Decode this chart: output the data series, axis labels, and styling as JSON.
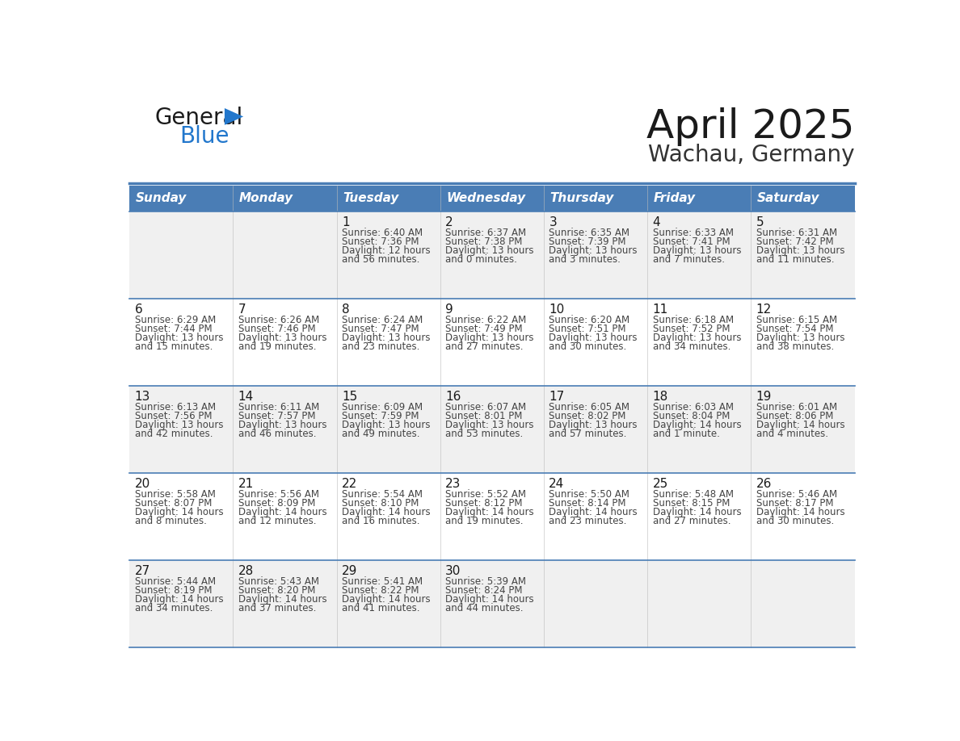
{
  "title": "April 2025",
  "subtitle": "Wachau, Germany",
  "header_bg_color": "#4a7db5",
  "header_text_color": "#ffffff",
  "cell_bg_odd": "#f0f0f0",
  "cell_bg_even": "#ffffff",
  "border_color": "#4a7db5",
  "day_number_color": "#1a1a1a",
  "cell_text_color": "#444444",
  "days_of_week": [
    "Sunday",
    "Monday",
    "Tuesday",
    "Wednesday",
    "Thursday",
    "Friday",
    "Saturday"
  ],
  "weeks": [
    [
      {
        "day": "",
        "sunrise": "",
        "sunset": "",
        "daylight": ""
      },
      {
        "day": "",
        "sunrise": "",
        "sunset": "",
        "daylight": ""
      },
      {
        "day": "1",
        "sunrise": "6:40 AM",
        "sunset": "7:36 PM",
        "daylight": "12 hours and 56 minutes."
      },
      {
        "day": "2",
        "sunrise": "6:37 AM",
        "sunset": "7:38 PM",
        "daylight": "13 hours and 0 minutes."
      },
      {
        "day": "3",
        "sunrise": "6:35 AM",
        "sunset": "7:39 PM",
        "daylight": "13 hours and 3 minutes."
      },
      {
        "day": "4",
        "sunrise": "6:33 AM",
        "sunset": "7:41 PM",
        "daylight": "13 hours and 7 minutes."
      },
      {
        "day": "5",
        "sunrise": "6:31 AM",
        "sunset": "7:42 PM",
        "daylight": "13 hours and 11 minutes."
      }
    ],
    [
      {
        "day": "6",
        "sunrise": "6:29 AM",
        "sunset": "7:44 PM",
        "daylight": "13 hours and 15 minutes."
      },
      {
        "day": "7",
        "sunrise": "6:26 AM",
        "sunset": "7:46 PM",
        "daylight": "13 hours and 19 minutes."
      },
      {
        "day": "8",
        "sunrise": "6:24 AM",
        "sunset": "7:47 PM",
        "daylight": "13 hours and 23 minutes."
      },
      {
        "day": "9",
        "sunrise": "6:22 AM",
        "sunset": "7:49 PM",
        "daylight": "13 hours and 27 minutes."
      },
      {
        "day": "10",
        "sunrise": "6:20 AM",
        "sunset": "7:51 PM",
        "daylight": "13 hours and 30 minutes."
      },
      {
        "day": "11",
        "sunrise": "6:18 AM",
        "sunset": "7:52 PM",
        "daylight": "13 hours and 34 minutes."
      },
      {
        "day": "12",
        "sunrise": "6:15 AM",
        "sunset": "7:54 PM",
        "daylight": "13 hours and 38 minutes."
      }
    ],
    [
      {
        "day": "13",
        "sunrise": "6:13 AM",
        "sunset": "7:56 PM",
        "daylight": "13 hours and 42 minutes."
      },
      {
        "day": "14",
        "sunrise": "6:11 AM",
        "sunset": "7:57 PM",
        "daylight": "13 hours and 46 minutes."
      },
      {
        "day": "15",
        "sunrise": "6:09 AM",
        "sunset": "7:59 PM",
        "daylight": "13 hours and 49 minutes."
      },
      {
        "day": "16",
        "sunrise": "6:07 AM",
        "sunset": "8:01 PM",
        "daylight": "13 hours and 53 minutes."
      },
      {
        "day": "17",
        "sunrise": "6:05 AM",
        "sunset": "8:02 PM",
        "daylight": "13 hours and 57 minutes."
      },
      {
        "day": "18",
        "sunrise": "6:03 AM",
        "sunset": "8:04 PM",
        "daylight": "14 hours and 1 minute."
      },
      {
        "day": "19",
        "sunrise": "6:01 AM",
        "sunset": "8:06 PM",
        "daylight": "14 hours and 4 minutes."
      }
    ],
    [
      {
        "day": "20",
        "sunrise": "5:58 AM",
        "sunset": "8:07 PM",
        "daylight": "14 hours and 8 minutes."
      },
      {
        "day": "21",
        "sunrise": "5:56 AM",
        "sunset": "8:09 PM",
        "daylight": "14 hours and 12 minutes."
      },
      {
        "day": "22",
        "sunrise": "5:54 AM",
        "sunset": "8:10 PM",
        "daylight": "14 hours and 16 minutes."
      },
      {
        "day": "23",
        "sunrise": "5:52 AM",
        "sunset": "8:12 PM",
        "daylight": "14 hours and 19 minutes."
      },
      {
        "day": "24",
        "sunrise": "5:50 AM",
        "sunset": "8:14 PM",
        "daylight": "14 hours and 23 minutes."
      },
      {
        "day": "25",
        "sunrise": "5:48 AM",
        "sunset": "8:15 PM",
        "daylight": "14 hours and 27 minutes."
      },
      {
        "day": "26",
        "sunrise": "5:46 AM",
        "sunset": "8:17 PM",
        "daylight": "14 hours and 30 minutes."
      }
    ],
    [
      {
        "day": "27",
        "sunrise": "5:44 AM",
        "sunset": "8:19 PM",
        "daylight": "14 hours and 34 minutes."
      },
      {
        "day": "28",
        "sunrise": "5:43 AM",
        "sunset": "8:20 PM",
        "daylight": "14 hours and 37 minutes."
      },
      {
        "day": "29",
        "sunrise": "5:41 AM",
        "sunset": "8:22 PM",
        "daylight": "14 hours and 41 minutes."
      },
      {
        "day": "30",
        "sunrise": "5:39 AM",
        "sunset": "8:24 PM",
        "daylight": "14 hours and 44 minutes."
      },
      {
        "day": "",
        "sunrise": "",
        "sunset": "",
        "daylight": ""
      },
      {
        "day": "",
        "sunrise": "",
        "sunset": "",
        "daylight": ""
      },
      {
        "day": "",
        "sunrise": "",
        "sunset": "",
        "daylight": ""
      }
    ]
  ],
  "title_fontsize": 36,
  "subtitle_fontsize": 20,
  "header_fontsize": 11,
  "day_num_fontsize": 11,
  "cell_fontsize": 8.5,
  "logo_general_fontsize": 20,
  "logo_blue_fontsize": 20,
  "logo_general_color": "#1a1a1a",
  "logo_blue_color": "#2277cc",
  "logo_triangle_color": "#2277cc",
  "title_color": "#1a1a1a",
  "subtitle_color": "#333333"
}
